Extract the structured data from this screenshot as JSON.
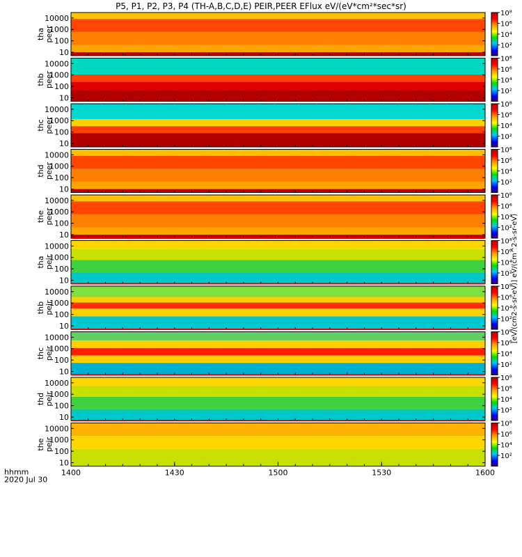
{
  "chart_data": {
    "type": "heatmap",
    "title": "P5, P1, P2, P3, P4 (TH-A,B,C,D,E) PEIR,PEER EFlux eV/(eV*cm²*sec*sr)",
    "colorbar_label": "[eV/(cm2-s-sr-eV)] eV/(cm^2-s-sr-eV)",
    "xaxis": {
      "ticks": [
        "1400",
        "1430",
        "1500",
        "1530",
        "1600"
      ],
      "label_line1": "hhmm",
      "label_line2": "2020 Jul 30"
    },
    "yaxis": {
      "scale": "log",
      "range": [
        5,
        30000
      ],
      "ticks": [
        "10",
        "100",
        "1000",
        "10000"
      ]
    },
    "colorbar": {
      "scale": "log",
      "range": [
        1,
        100000000
      ],
      "ticks": [
        "10²",
        "10⁴",
        "10⁶",
        "10⁸"
      ]
    },
    "panels": [
      {
        "probe": "tha",
        "species": "peer",
        "ylabel": [
          "tha",
          "peer"
        ]
      },
      {
        "probe": "thb",
        "species": "peer",
        "ylabel": [
          "thb",
          "peer"
        ]
      },
      {
        "probe": "thc",
        "species": "peer",
        "ylabel": [
          "thc",
          "peer"
        ]
      },
      {
        "probe": "thd",
        "species": "peer",
        "ylabel": [
          "thd",
          "peer"
        ]
      },
      {
        "probe": "the",
        "species": "peer",
        "ylabel": [
          "the",
          "peer"
        ]
      },
      {
        "probe": "tha",
        "species": "peir",
        "ylabel": [
          "tha",
          "peir"
        ]
      },
      {
        "probe": "thb",
        "species": "peir",
        "ylabel": [
          "thb",
          "peir"
        ]
      },
      {
        "probe": "thc",
        "species": "peir",
        "ylabel": [
          "thc",
          "peir"
        ]
      },
      {
        "probe": "thd",
        "species": "peir",
        "ylabel": [
          "thd",
          "peir"
        ]
      },
      {
        "probe": "the",
        "species": "peir",
        "ylabel": [
          "the",
          "peir"
        ]
      }
    ]
  }
}
